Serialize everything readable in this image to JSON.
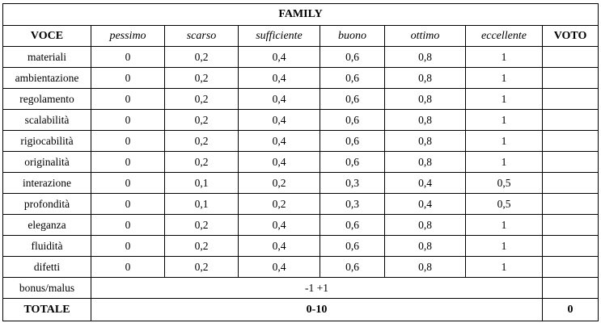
{
  "title": "FAMILY",
  "headers": {
    "item": "VOCE",
    "levels": [
      "pessimo",
      "scarso",
      "sufficiente",
      "buono",
      "ottimo",
      "eccellente"
    ],
    "grade": "VOTO"
  },
  "rows": [
    {
      "label": "materiali",
      "values": [
        "0",
        "0,2",
        "0,4",
        "0,6",
        "0,8",
        "1"
      ],
      "grade": ""
    },
    {
      "label": "ambientazione",
      "values": [
        "0",
        "0,2",
        "0,4",
        "0,6",
        "0,8",
        "1"
      ],
      "grade": ""
    },
    {
      "label": "regolamento",
      "values": [
        "0",
        "0,2",
        "0,4",
        "0,6",
        "0,8",
        "1"
      ],
      "grade": ""
    },
    {
      "label": "scalabilità",
      "values": [
        "0",
        "0,2",
        "0,4",
        "0,6",
        "0,8",
        "1"
      ],
      "grade": ""
    },
    {
      "label": "rigiocabilità",
      "values": [
        "0",
        "0,2",
        "0,4",
        "0,6",
        "0,8",
        "1"
      ],
      "grade": ""
    },
    {
      "label": "originalità",
      "values": [
        "0",
        "0,2",
        "0,4",
        "0,6",
        "0,8",
        "1"
      ],
      "grade": ""
    },
    {
      "label": "interazione",
      "values": [
        "0",
        "0,1",
        "0,2",
        "0,3",
        "0,4",
        "0,5"
      ],
      "grade": ""
    },
    {
      "label": "profondità",
      "values": [
        "0",
        "0,1",
        "0,2",
        "0,3",
        "0,4",
        "0,5"
      ],
      "grade": ""
    },
    {
      "label": "eleganza",
      "values": [
        "0",
        "0,2",
        "0,4",
        "0,6",
        "0,8",
        "1"
      ],
      "grade": ""
    },
    {
      "label": "fluidità",
      "values": [
        "0",
        "0,2",
        "0,4",
        "0,6",
        "0,8",
        "1"
      ],
      "grade": ""
    },
    {
      "label": "difetti",
      "values": [
        "0",
        "0,2",
        "0,4",
        "0,6",
        "0,8",
        "1"
      ],
      "grade": ""
    }
  ],
  "bonus": {
    "label": "bonus/malus",
    "range": "-1 +1",
    "grade": ""
  },
  "total": {
    "label": "TOTALE",
    "range": "0-10",
    "grade": "0"
  }
}
